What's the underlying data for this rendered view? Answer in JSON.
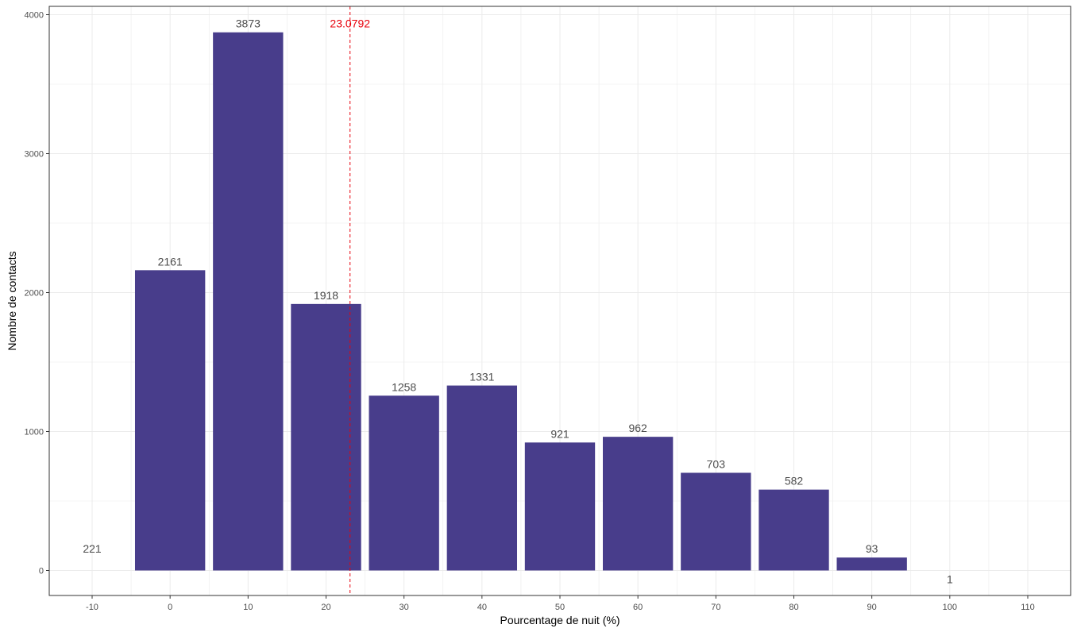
{
  "chart_data": {
    "type": "bar",
    "xlabel": "Pourcentage de nuit (%)",
    "ylabel": "Nombre de contacts",
    "x": [
      -10,
      0,
      10,
      20,
      30,
      40,
      50,
      60,
      70,
      80,
      90,
      100
    ],
    "values": [
      221,
      2161,
      3873,
      1918,
      1258,
      1331,
      921,
      962,
      703,
      582,
      93,
      1
    ],
    "labels": [
      "221",
      "2161",
      "3873",
      "1918",
      "1258",
      "1331",
      "921",
      "962",
      "703",
      "582",
      "93",
      "1"
    ],
    "bar_visible": [
      false,
      true,
      true,
      true,
      true,
      true,
      true,
      true,
      true,
      true,
      true,
      false
    ],
    "bar_width": 9,
    "xlim": [
      -15.5,
      115.5
    ],
    "ylim": [
      -180,
      4060
    ],
    "x_ticks": [
      -10,
      0,
      10,
      20,
      30,
      40,
      50,
      60,
      70,
      80,
      90,
      100,
      110
    ],
    "x_tick_labels": [
      "-10",
      "0",
      "10",
      "20",
      "30",
      "40",
      "50",
      "60",
      "70",
      "80",
      "90",
      "100",
      "110"
    ],
    "y_ticks": [
      0,
      1000,
      2000,
      3000,
      4000
    ],
    "y_tick_labels": [
      "0",
      "1000",
      "2000",
      "3000",
      "4000"
    ],
    "grid": true,
    "reference_line": {
      "x": 23.0792,
      "label": "23.0792",
      "color": "#e8000b",
      "style": "dashed"
    },
    "bar_color": "#483d8b",
    "label_color": "#4d4d4d",
    "grid_color": "#ebebeb"
  }
}
